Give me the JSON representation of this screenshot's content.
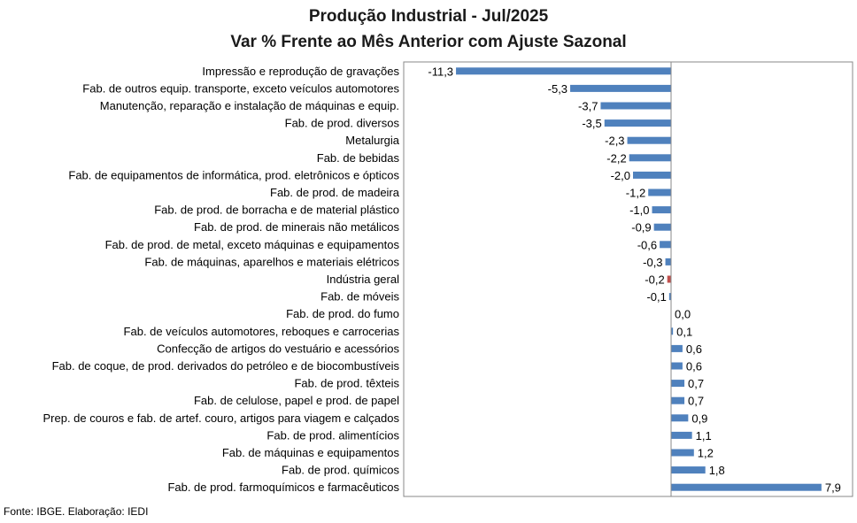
{
  "chart_data": {
    "type": "bar",
    "orientation": "horizontal",
    "title": "Produção Industrial - Jul/2025",
    "subtitle": "Var % Frente ao Mês Anterior com Ajuste Sazonal",
    "xlim": [
      -11.3,
      7.9
    ],
    "grid": false,
    "legend": "none",
    "categories": [
      "Impressão e reprodução de gravações",
      "Fab. de outros equip. transporte, exceto veículos automotores",
      "Manutenção, reparação e instalação de máquinas e equip.",
      "Fab. de prod. diversos",
      "Metalurgia",
      "Fab. de bebidas",
      "Fab. de equipamentos de informática, prod. eletrônicos e ópticos",
      "Fab. de prod. de madeira",
      "Fab. de prod. de borracha e de material plástico",
      "Fab. de prod. de minerais não metálicos",
      "Fab. de prod. de metal, exceto máquinas e equipamentos",
      "Fab. de máquinas, aparelhos e materiais elétricos",
      "Indústria geral",
      "Fab. de móveis",
      "Fab. de prod. do fumo",
      "Fab. de veículos automotores, reboques e carrocerias",
      "Confecção de artigos do vestuário e acessórios",
      "Fab. de coque, de prod. derivados do petróleo e de biocombustíveis",
      "Fab. de prod. têxteis",
      "Fab. de celulose, papel e prod. de papel",
      "Prep. de couros e fab. de artef. couro, artigos para viagem e calçados",
      "Fab. de prod. alimentícios",
      "Fab. de máquinas e equipamentos",
      "Fab. de prod. químicos",
      "Fab. de prod. farmoquímicos e farmacêuticos"
    ],
    "values": [
      -11.3,
      -5.3,
      -3.7,
      -3.5,
      -2.3,
      -2.2,
      -2.0,
      -1.2,
      -1.0,
      -0.9,
      -0.6,
      -0.3,
      -0.2,
      -0.1,
      0.0,
      0.1,
      0.6,
      0.6,
      0.7,
      0.7,
      0.9,
      1.1,
      1.2,
      1.8,
      7.9
    ],
    "labels": [
      "-11,3",
      "-5,3",
      "-3,7",
      "-3,5",
      "-2,3",
      "-2,2",
      "-2,0",
      "-1,2",
      "-1,0",
      "-0,9",
      "-0,6",
      "-0,3",
      "-0,2",
      "-0,1",
      "0,0",
      "0,1",
      "0,6",
      "0,6",
      "0,7",
      "0,7",
      "0,9",
      "1,1",
      "1,2",
      "1,8",
      "7,9"
    ],
    "highlight": "Indústria geral",
    "colors": {
      "bar": "#4f81bd",
      "highlight": "#c0504d",
      "frame": "#888888"
    }
  },
  "footer": {
    "source": "Fonte: IBGE. Elaboração: IEDI"
  }
}
